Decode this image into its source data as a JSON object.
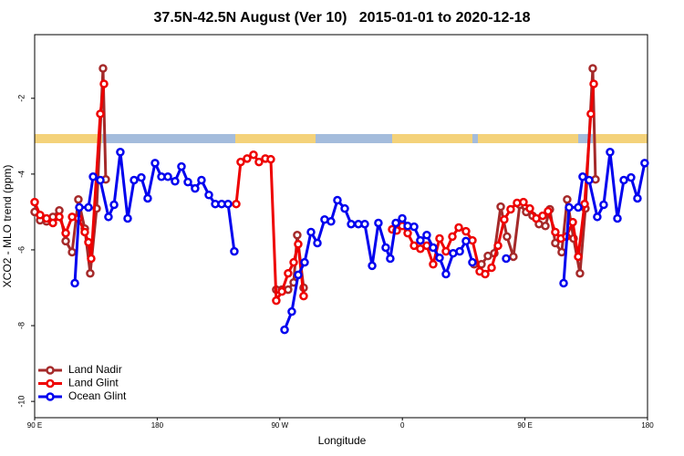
{
  "chart_data": {
    "type": "line",
    "title": "37.5N-42.5N August (Ver 10)   2015-01-01 to 2020-12-18",
    "x_label": "Longitude",
    "y_label": "XCO2 - MLO trend (ppm)",
    "xlim": [
      90,
      540
    ],
    "xticks": [
      {
        "value": 90,
        "label": "90 E"
      },
      180,
      {
        "value": 270,
        "label": "90 W"
      },
      {
        "value": 360,
        "label": "0"
      },
      {
        "value": 450,
        "label": "90 E"
      },
      {
        "value": 540,
        "label": "180"
      }
    ],
    "ylim": [
      -10.43,
      -0.32
    ],
    "yticks": [
      -2,
      -4,
      -6,
      -8,
      -10
    ],
    "legend": "bottom-left",
    "series": [
      {
        "name": "Land Nadir",
        "color": "#a52a2a",
        "x": [
          90,
          94.0,
          98.7,
          103.4,
          108.1,
          112.8,
          117.5,
          122.1,
          126.8,
          130.8,
          135.5,
          140.2,
          142.2,
          null,
          267.4,
          271.5,
          276.1,
          280.2,
          282.8,
          287.5,
          null,
          412.7,
          418.1,
          422.8,
          427.5,
          432.2,
          436.8,
          441.5,
          446.2,
          450.9,
          455.6,
          460.3,
          465.0,
          468.3,
          472.3,
          477.0,
          481.0,
          485.7,
          490.4,
          494.4,
          499.8,
          501.8
        ],
        "values": [
          -5.0,
          -5.22,
          -5.25,
          -5.13,
          -4.96,
          -5.77,
          -6.06,
          -4.67,
          -5.44,
          -6.62,
          -4.91,
          -1.21,
          -4.14,
          null,
          -7.05,
          -7.05,
          -7.05,
          -6.86,
          -5.61,
          -7.0,
          null,
          -6.38,
          -6.38,
          -6.16,
          -6.09,
          -4.86,
          -5.65,
          -6.18,
          -4.81,
          -5.0,
          -5.1,
          -5.32,
          -5.37,
          -4.93,
          -5.82,
          -6.06,
          -4.67,
          -5.7,
          -6.62,
          -4.91,
          -1.21,
          -4.14
        ]
      },
      {
        "name": "Land Glint",
        "color": "#ee0000",
        "x": [
          90,
          94.0,
          98.7,
          103.4,
          108.1,
          112.8,
          117.5,
          122.1,
          126.8,
          129.5,
          131.5,
          138.2,
          140.9,
          null,
          238.0,
          241.3,
          246.0,
          250.7,
          254.7,
          259.4,
          263.4,
          267.4,
          271.5,
          276.1,
          280.2,
          283.5,
          287.5,
          null,
          352.5,
          355.8,
          359.9,
          363.9,
          368.6,
          373.2,
          377.9,
          382.6,
          387.3,
          392.0,
          396.7,
          401.4,
          406.7,
          411.4,
          416.8,
          420.8,
          425.5,
          430.2,
          434.8,
          439.5,
          444.2,
          448.9,
          453.6,
          458.3,
          463.0,
          467.0,
          472.3,
          476.4,
          480.4,
          485.1,
          489.1,
          493.8,
          498.4,
          500.5
        ],
        "values": [
          -4.74,
          -5.08,
          -5.17,
          -5.29,
          -5.13,
          -5.56,
          -5.13,
          -5.17,
          -5.53,
          -5.8,
          -6.23,
          -2.41,
          -1.62,
          null,
          -4.79,
          -3.68,
          -3.59,
          -3.49,
          -3.68,
          -3.59,
          -3.61,
          -7.34,
          -7.1,
          -6.62,
          -6.33,
          -5.85,
          -7.22,
          null,
          -5.46,
          -5.49,
          -5.37,
          -5.56,
          -5.89,
          -5.97,
          -5.89,
          -6.38,
          -5.7,
          -6.04,
          -5.65,
          -5.41,
          -5.51,
          -5.75,
          -6.57,
          -6.64,
          -6.47,
          -5.89,
          -5.2,
          -4.93,
          -4.76,
          -4.74,
          -4.91,
          -5.17,
          -5.1,
          -4.98,
          -5.53,
          -5.7,
          -5.65,
          -5.27,
          -6.18,
          -4.79,
          -2.41,
          -1.62
        ]
      },
      {
        "name": "Ocean Glint",
        "color": "#0000ee",
        "x": [
          119.5,
          122.8,
          129.5,
          132.9,
          138.2,
          144.2,
          148.3,
          152.9,
          158.3,
          163.0,
          168.3,
          173.0,
          178.4,
          183.1,
          187.8,
          193.1,
          197.8,
          202.5,
          207.8,
          212.5,
          217.9,
          222.6,
          227.3,
          232.0,
          236.6,
          null,
          273.5,
          278.8,
          283.5,
          288.2,
          292.9,
          297.6,
          302.9,
          307.6,
          312.3,
          317.7,
          322.4,
          327.7,
          332.4,
          337.8,
          342.4,
          347.8,
          351.1,
          355.2,
          359.9,
          363.9,
          368.6,
          373.2,
          377.9,
          382.6,
          387.3,
          392.0,
          397.3,
          402.1,
          406.7,
          411.4,
          null,
          436.2,
          null,
          478.4,
          482.4,
          489.1,
          492.4,
          497.1,
          503.1,
          507.8,
          512.5,
          517.9,
          522.6,
          527.9,
          532.6,
          537.9
        ],
        "values": [
          -6.88,
          -4.88,
          -4.88,
          -4.07,
          -4.16,
          -5.13,
          -4.81,
          -3.42,
          -5.17,
          -4.16,
          -4.09,
          -4.64,
          -3.71,
          -4.07,
          -4.07,
          -4.19,
          -3.8,
          -4.21,
          -4.38,
          -4.16,
          -4.55,
          -4.79,
          -4.79,
          -4.79,
          -6.04,
          null,
          -8.11,
          -7.63,
          -6.66,
          -6.33,
          -5.53,
          -5.82,
          -5.2,
          -5.25,
          -4.69,
          -4.91,
          -5.32,
          -5.32,
          -5.32,
          -6.42,
          -5.29,
          -5.94,
          -6.23,
          -5.29,
          -5.17,
          -5.37,
          -5.39,
          -5.75,
          -5.61,
          -5.94,
          -6.21,
          -6.64,
          -6.09,
          -6.04,
          -5.77,
          -6.33,
          null,
          -6.23,
          null,
          -6.88,
          -4.88,
          -4.88,
          -4.07,
          -4.16,
          -5.13,
          -4.81,
          -3.42,
          -5.17,
          -4.16,
          -4.09,
          -4.64,
          -3.71
        ]
      }
    ]
  }
}
